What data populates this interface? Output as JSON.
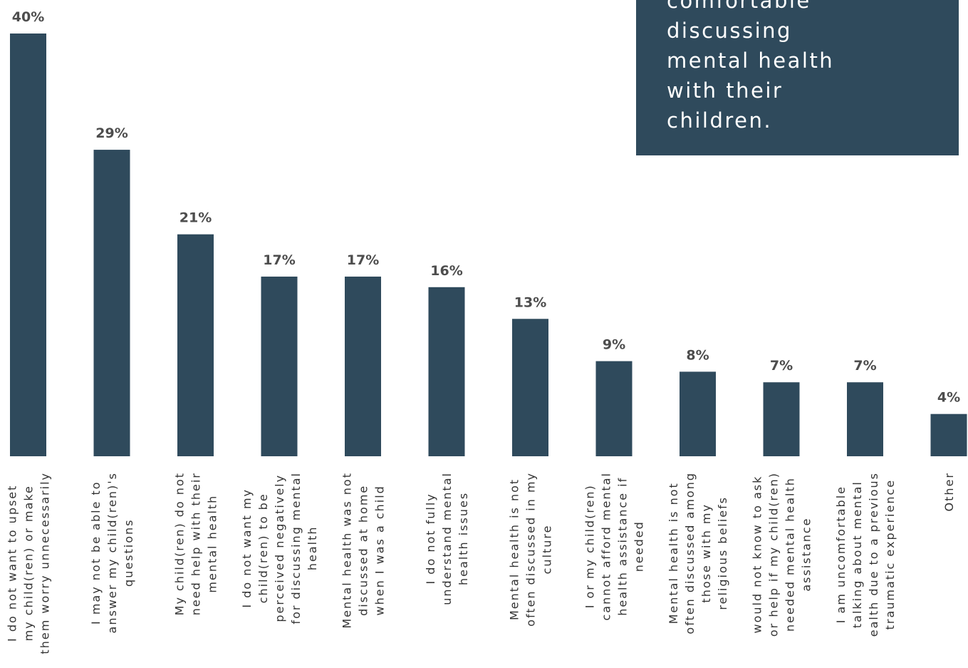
{
  "callout": {
    "text": "comfortable\ndiscussing\nmental health\nwith their\nchildren."
  },
  "colors": {
    "bar": "#2f4a5c",
    "callout_background": "#2f4a5c",
    "value_label": "#4d4d4d",
    "category_label": "#333333"
  },
  "chart_data": {
    "type": "bar",
    "title": "",
    "xlabel": "",
    "ylabel": "",
    "ylim": [
      0,
      40
    ],
    "grid": false,
    "categories": [
      "I do not want to upset my child(ren) or make them worry unnecessarily",
      "I may not be able to answer my child(ren)'s questions",
      "My child(ren) do not need help with their mental health",
      "I do not want my child(ren) to be perceived negatively for discussing mental health",
      "Mental health was not discussed at home when I was a child",
      "I do not fully understand mental health issues",
      "Mental health is not often discussed in my culture",
      "I or my child(ren) cannot afford mental health assistance if needed",
      "Mental health is not often discussed among those with my religious beliefs",
      "would not know to ask or help if my child(ren) needed mental health assistance",
      "I am uncomfortable talking about mental ealth due to a previous traumatic experience",
      "Other"
    ],
    "category_lines": [
      [
        "I do not want to upset",
        "my child(ren) or make",
        "them worry unnecessarily"
      ],
      [
        "I may not be able to",
        "answer my child(ren)'s",
        "questions"
      ],
      [
        "My child(ren) do not",
        "need help with their",
        "mental health"
      ],
      [
        "I do not want my",
        "child(ren) to be",
        "perceived negatively",
        "for discussing mental",
        "health"
      ],
      [
        "Mental health was not",
        "discussed at home",
        "when I was a child"
      ],
      [
        "I do not fully",
        "understand mental",
        "health issues"
      ],
      [
        "Mental health is not",
        "often discussed in my",
        "culture"
      ],
      [
        "I or my child(ren)",
        "cannot afford mental",
        "health assistance if",
        "needed"
      ],
      [
        "Mental health is not",
        "often discussed among",
        "those with my",
        "religious beliefs"
      ],
      [
        "would not know to ask",
        "or help if my child(ren)",
        "needed mental health",
        "assistance"
      ],
      [
        "I am uncomfortable",
        "talking about mental",
        "ealth due to a previous",
        "traumatic experience"
      ],
      [
        "Other"
      ]
    ],
    "values": [
      40,
      29,
      21,
      17,
      17,
      16,
      13,
      9,
      8,
      7,
      7,
      4
    ],
    "value_labels": [
      "40%",
      "29%",
      "21%",
      "17%",
      "17%",
      "16%",
      "13%",
      "9%",
      "8%",
      "7%",
      "7%",
      "4%"
    ]
  }
}
